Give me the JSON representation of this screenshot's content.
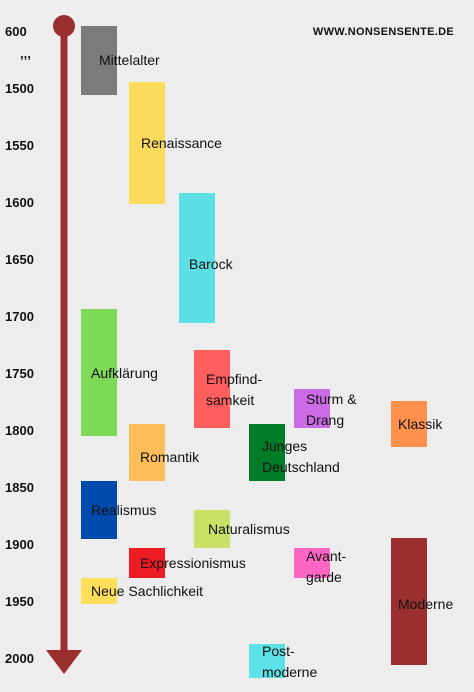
{
  "site": "WWW.NONSENSENTE.DE",
  "ticks": {
    "t600": "600",
    "tgap": ",,,",
    "t1500": "1500",
    "t1550": "1550",
    "t1600": "1600",
    "t1650": "1650",
    "t1700": "1700",
    "t1750": "1750",
    "t1800": "1800",
    "t1850": "1850",
    "t1900": "1900",
    "t1950": "1950",
    "t2000": "2000"
  },
  "colors": {
    "axis": "#9b2f30",
    "mittelalter": "#7b7b7b",
    "renaissance": "#fbdb5c",
    "barock": "#5ce0e6",
    "aufklaerung": "#7ed957",
    "empfindsamkeit": "#ff5e5e",
    "sturm": "#cb6ce6",
    "klassik": "#ff914d",
    "romantik": "#ffbd59",
    "junges": "#007b28",
    "realismus": "#004aad",
    "naturalismus": "#c9e265",
    "expressionismus": "#ed1c24",
    "avantgarde": "#ff66c4",
    "neue": "#ffde59",
    "moderne": "#9b2f30",
    "postmoderne": "#5ce1e6"
  },
  "epochs": {
    "mittelalter": "Mittelalter",
    "renaissance": "Renaissance",
    "barock": "Barock",
    "aufklaerung": "Aufklärung",
    "empfindsamkeit_1": "Empfind-",
    "empfindsamkeit_2": "samkeit",
    "sturm_1": "Sturm &",
    "sturm_2": "Drang",
    "klassik": "Klassik",
    "romantik": "Romantik",
    "junges_1": "Junges",
    "junges_2": "Deutschland",
    "realismus": "Realismus",
    "naturalismus": "Naturalismus",
    "expressionismus": "Expressionismus",
    "avantgarde_1": "Avant-",
    "avantgarde_2": "garde",
    "neue": "Neue Sachlichkeit",
    "moderne": "Moderne",
    "postmoderne_1": "Post-",
    "postmoderne_2": "moderne"
  }
}
